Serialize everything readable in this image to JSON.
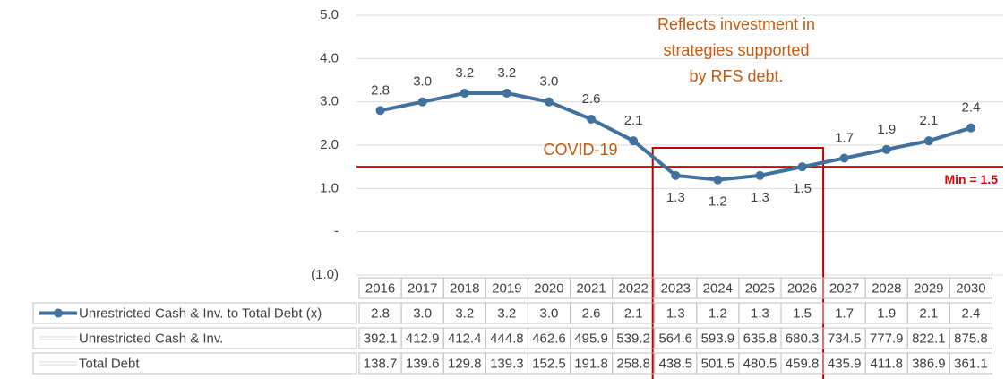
{
  "chart_data": {
    "type": "line",
    "categories": [
      "2016",
      "2017",
      "2018",
      "2019",
      "2020",
      "2021",
      "2022",
      "2023",
      "2024",
      "2025",
      "2026",
      "2027",
      "2028",
      "2029",
      "2030"
    ],
    "series": [
      {
        "name": "Unrestricted Cash & Inv. to Total Debt (x)",
        "color": "#41719c",
        "values": [
          2.8,
          3.0,
          3.2,
          3.2,
          3.0,
          2.6,
          2.1,
          1.3,
          1.2,
          1.3,
          1.5,
          1.7,
          1.9,
          2.1,
          2.4
        ],
        "value_labels": [
          "2.8",
          "3.0",
          "3.2",
          "3.2",
          "3.0",
          "2.6",
          "2.1",
          "1.3",
          "1.2",
          "1.3",
          "1.5",
          "1.7",
          "1.9",
          "2.1",
          "2.4"
        ]
      }
    ],
    "table_rows": [
      {
        "name": "Unrestricted Cash & Inv.",
        "values": [
          392.1,
          412.9,
          412.4,
          444.8,
          462.6,
          495.9,
          539.2,
          564.6,
          593.9,
          635.8,
          680.3,
          734.5,
          777.9,
          822.1,
          875.8
        ]
      },
      {
        "name": "Total Debt",
        "values": [
          138.7,
          139.6,
          129.8,
          139.3,
          152.5,
          191.8,
          258.8,
          438.5,
          501.5,
          480.5,
          459.8,
          435.9,
          411.8,
          386.9,
          361.1
        ]
      }
    ],
    "ylim": [
      -1,
      5
    ],
    "yticks": [
      {
        "value": 5,
        "label": "5.0"
      },
      {
        "value": 4,
        "label": "4.0"
      },
      {
        "value": 3,
        "label": "3.0"
      },
      {
        "value": 2,
        "label": "2.0"
      },
      {
        "value": 1,
        "label": "1.0"
      },
      {
        "value": 0,
        "label": "-"
      },
      {
        "value": -1,
        "label": "(1.0)"
      }
    ],
    "grid": true,
    "min_line": {
      "value": 1.5,
      "label": "Min = 1.5",
      "color": "#e00000"
    },
    "annotations": {
      "covid": "COVID-19",
      "note": [
        "Reflects investment in",
        "strategies supported",
        "by RFS debt."
      ]
    }
  }
}
